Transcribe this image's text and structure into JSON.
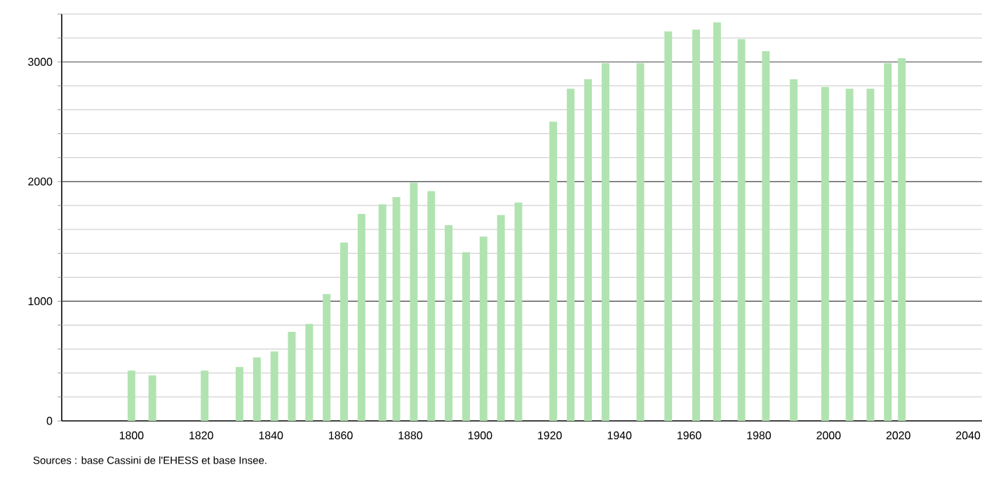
{
  "chart_data": {
    "type": "bar",
    "x": [
      1800,
      1806,
      1821,
      1831,
      1836,
      1841,
      1846,
      1851,
      1856,
      1861,
      1866,
      1872,
      1876,
      1881,
      1886,
      1891,
      1896,
      1901,
      1906,
      1911,
      1921,
      1926,
      1931,
      1936,
      1946,
      1954,
      1962,
      1968,
      1975,
      1982,
      1990,
      1999,
      2006,
      2012,
      2017,
      2021
    ],
    "values": [
      420,
      380,
      420,
      450,
      530,
      580,
      745,
      810,
      1060,
      1490,
      1730,
      1810,
      1870,
      1990,
      1920,
      1635,
      1410,
      1540,
      1720,
      1825,
      2500,
      2775,
      2855,
      2990,
      2990,
      3255,
      3270,
      3330,
      3190,
      3090,
      2855,
      2790,
      2775,
      2775,
      2990,
      3030
    ],
    "color": "#b0e3b0",
    "xlim": [
      1780,
      2044
    ],
    "ylim": [
      0,
      3400
    ],
    "xticks": [
      1800,
      1820,
      1840,
      1860,
      1880,
      1900,
      1920,
      1940,
      1960,
      1980,
      2000,
      2020,
      2040
    ],
    "yticks": [
      0,
      {
        "value": 200,
        "label": null
      },
      {
        "value": 400,
        "label": null
      },
      {
        "value": 600,
        "label": null
      },
      {
        "value": 800,
        "label": null
      },
      1000,
      {
        "value": 1200,
        "label": null
      },
      {
        "value": 1400,
        "label": null
      },
      {
        "value": 1600,
        "label": null
      },
      {
        "value": 1800,
        "label": null
      },
      2000,
      {
        "value": 2200,
        "label": null
      },
      {
        "value": 2400,
        "label": null
      },
      {
        "value": 2600,
        "label": null
      },
      {
        "value": 2800,
        "label": null
      },
      3000,
      {
        "value": 3200,
        "label": null
      },
      {
        "value": 3400,
        "label": null
      }
    ],
    "grid": "y",
    "annotations": [
      "Sources : base Cassini de l'EHESS et base Insee."
    ]
  }
}
